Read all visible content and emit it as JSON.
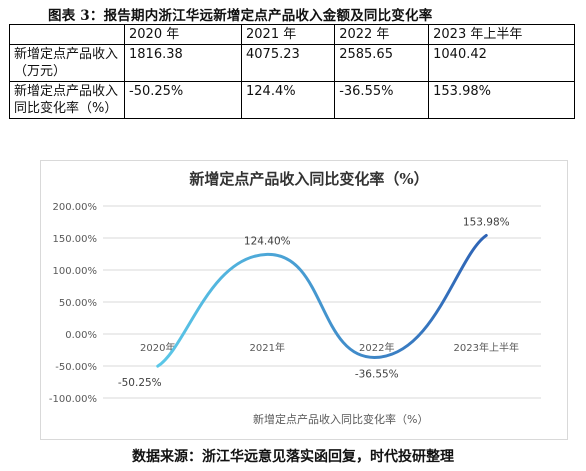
{
  "figure_title": "图表 3：报告期内浙江华远新增定点产品收入金额及同比变化率",
  "table": {
    "header": [
      "",
      "2020 年",
      "2021 年",
      "2022 年",
      "2023 年上半年"
    ],
    "rows": [
      {
        "label": "新增定点产品收入（万元）",
        "values": [
          "1816.38",
          "4075.23",
          "2585.65",
          "1040.42"
        ]
      },
      {
        "label": "新增定点产品收入同比变化率（%）",
        "values": [
          "-50.25%",
          "124.4%",
          "-36.55%",
          "153.98%"
        ]
      }
    ]
  },
  "chart_data": {
    "type": "line",
    "title": "新增定点产品收入同比变化率（%）",
    "categories": [
      "2020年",
      "2021年",
      "2022年",
      "2023年上半年"
    ],
    "series": [
      {
        "name": "新增定点产品收入同比变化率（%）",
        "values": [
          -50.25,
          124.4,
          -36.55,
          153.98
        ],
        "labels": [
          "-50.25%",
          "124.40%",
          "-36.55%",
          "153.98%"
        ],
        "smooth": true
      }
    ],
    "ylim": [
      -100,
      200
    ],
    "yticks": [
      -100,
      -50,
      0,
      50,
      100,
      150,
      200
    ],
    "ytick_labels": [
      "-100.00%",
      "-50.00%",
      "0.00%",
      "50.00%",
      "100.00%",
      "150.00%",
      "200.00%"
    ],
    "xlabel": "",
    "ylabel": "",
    "grid": true,
    "legend": "bottom",
    "colors": {
      "line_start": "#5BC8E8",
      "line_end": "#2E63B5",
      "grid": "#d9d9d9",
      "text": "#595959"
    }
  },
  "source": "数据来源：浙江华远意见落实函回复，时代投研整理"
}
